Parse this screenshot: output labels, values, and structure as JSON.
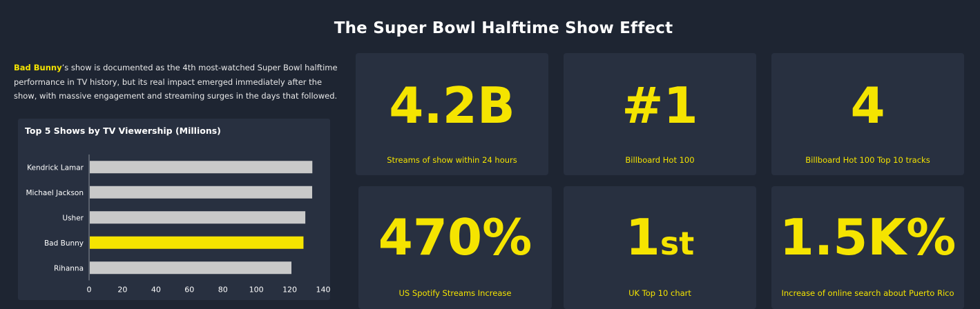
{
  "header": {
    "title": "The Super Bowl Halftime Show Effect"
  },
  "intro": {
    "highlight": "Bad Bunny",
    "text": "’s show is documented as the 4th most-watched Super Bowl halftime performance in TV history, but its real impact emerged immediately after the show, with massive engagement and streaming surges in the days that followed."
  },
  "stats": [
    {
      "value": "4.2B",
      "suffix": "",
      "label": "Streams of show within 24 hours"
    },
    {
      "value": "#1",
      "suffix": "",
      "label": "Billboard Hot 100"
    },
    {
      "value": "4",
      "suffix": "",
      "label": "Billboard Hot 100 Top 10 tracks"
    },
    {
      "value": "470%",
      "suffix": "",
      "label": "US Spotify Streams Increase"
    },
    {
      "value": "1",
      "suffix": "st",
      "label": "UK Top 10 chart"
    },
    {
      "value": "1.5K%",
      "suffix": "",
      "label": "Increase of online search about Puerto Rico"
    }
  ],
  "colors": {
    "background": "#1e2532",
    "card": "#283040",
    "accent": "#f5e400",
    "bar": "#c9c9c9"
  },
  "chart_data": {
    "type": "bar",
    "orientation": "horizontal",
    "title": "Top 5 Shows by TV Viewership (Millions)",
    "categories": [
      "Kendrick Lamar",
      "Michael Jackson",
      "Usher",
      "Bad Bunny",
      "Rihanna"
    ],
    "values": [
      133.5,
      133.4,
      129.3,
      128.2,
      121.0
    ],
    "highlight": "Bad Bunny",
    "xlim": [
      0,
      140
    ],
    "xticks": [
      0,
      20,
      40,
      60,
      80,
      100,
      120,
      140
    ],
    "xlabel": "",
    "ylabel": "",
    "grid": false
  }
}
